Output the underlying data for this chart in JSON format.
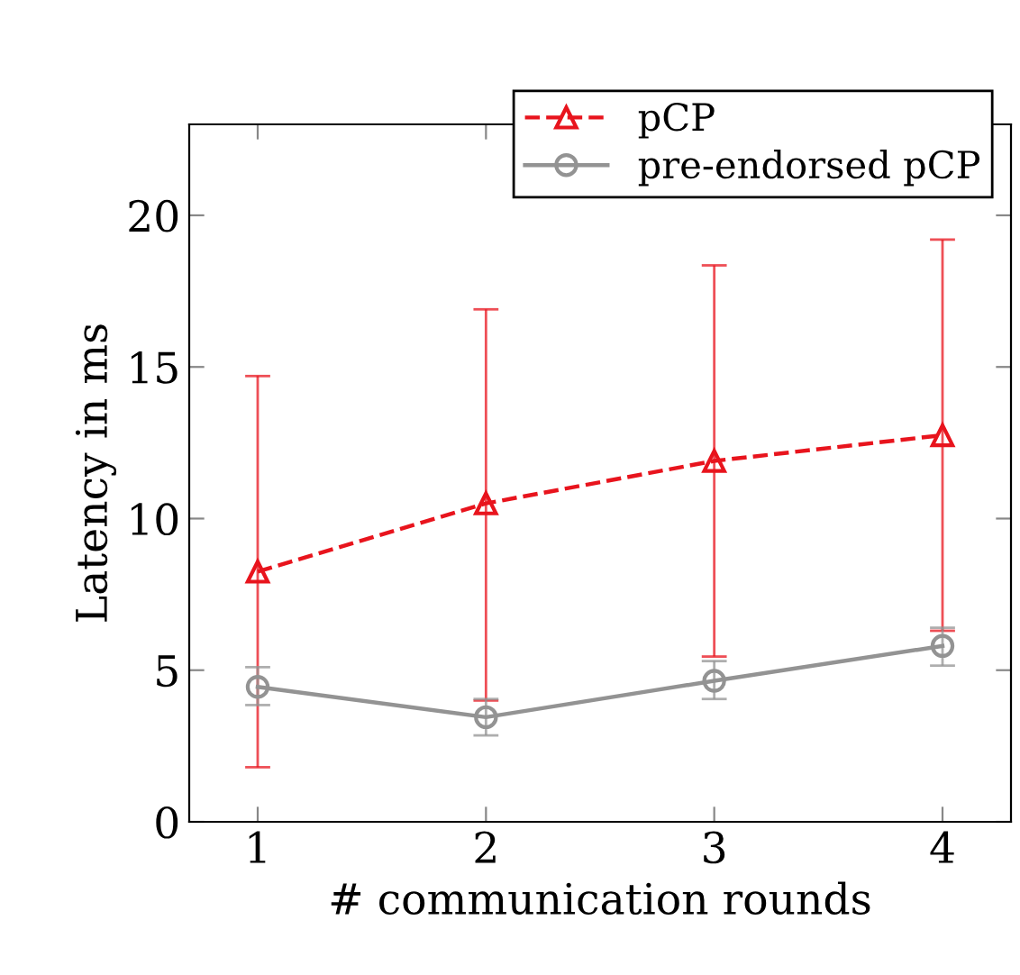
{
  "chart_data": {
    "type": "line",
    "xlabel": "# communication rounds",
    "ylabel": "Latency in ms",
    "x": [
      1,
      2,
      3,
      4
    ],
    "series": [
      {
        "name": "pCP",
        "color": "#e8141d",
        "values": [
          8.25,
          10.5,
          11.9,
          12.75
        ],
        "errors": [
          [
            1.8,
            14.7
          ],
          [
            4.0,
            16.9
          ],
          [
            5.45,
            18.35
          ],
          [
            6.3,
            19.2
          ]
        ],
        "marker": "triangle",
        "line_style": "dashed"
      },
      {
        "name": "pre-endorsed pCP",
        "color": "#939393",
        "values": [
          4.45,
          3.45,
          4.65,
          5.8
        ],
        "errors": [
          [
            3.85,
            5.1
          ],
          [
            2.85,
            4.05
          ],
          [
            4.05,
            5.3
          ],
          [
            5.15,
            6.4
          ]
        ],
        "marker": "circle",
        "line_style": "solid"
      }
    ],
    "xlim": [
      0.7,
      4.3
    ],
    "ylim": [
      0,
      23
    ],
    "xticks": [
      1,
      2,
      3,
      4
    ],
    "yticks": [
      0,
      5,
      10,
      15,
      20
    ],
    "grid": false,
    "legend": "top right"
  }
}
